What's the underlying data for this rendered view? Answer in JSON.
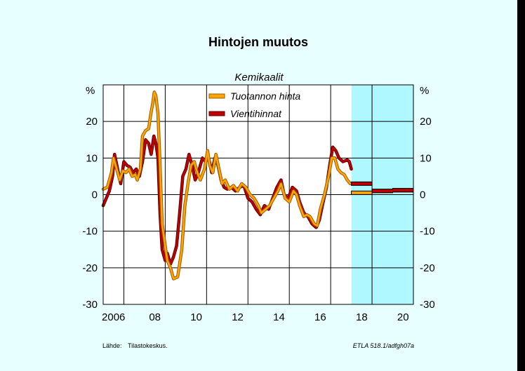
{
  "chart_data": {
    "type": "line",
    "title": "Hintojen muutos",
    "subtitle": "Kemikaalit",
    "ylabel_left": "%",
    "ylabel_right": "%",
    "ylim": [
      -30,
      30
    ],
    "yticks": [
      20,
      10,
      0,
      -10,
      -20,
      -30
    ],
    "xlim": [
      2005.5,
      2020.5
    ],
    "xticks": [
      {
        "value": 2006,
        "label": "2006"
      },
      {
        "value": 2008,
        "label": "08"
      },
      {
        "value": 2010,
        "label": "10"
      },
      {
        "value": 2012,
        "label": "12"
      },
      {
        "value": 2014,
        "label": "14"
      },
      {
        "value": 2016,
        "label": "16"
      },
      {
        "value": 2018,
        "label": "18"
      },
      {
        "value": 2020,
        "label": "20"
      }
    ],
    "x_gridlines": [
      2006.5,
      2008.5,
      2010.5,
      2012.5,
      2014.5,
      2016.5,
      2018.5
    ],
    "forecast_start": 2017.5,
    "legend_position": "top-center",
    "series": [
      {
        "name": "Tuotannon hinta",
        "color": "#ffa500",
        "values": [
          [
            2005.5,
            1.5
          ],
          [
            2005.7,
            2.0
          ],
          [
            2005.9,
            6.0
          ],
          [
            2006.0,
            10.0
          ],
          [
            2006.15,
            7.0
          ],
          [
            2006.3,
            4.0
          ],
          [
            2006.45,
            6.5
          ],
          [
            2006.6,
            6.0
          ],
          [
            2006.75,
            7.0
          ],
          [
            2006.9,
            5.0
          ],
          [
            2007.05,
            5.5
          ],
          [
            2007.15,
            4.0
          ],
          [
            2007.3,
            7.0
          ],
          [
            2007.4,
            16.0
          ],
          [
            2007.55,
            17.5
          ],
          [
            2007.7,
            18.0
          ],
          [
            2007.8,
            22.0
          ],
          [
            2007.9,
            25.0
          ],
          [
            2007.97,
            28.0
          ],
          [
            2008.05,
            27.0
          ],
          [
            2008.15,
            22.0
          ],
          [
            2008.25,
            8.0
          ],
          [
            2008.35,
            -8.0
          ],
          [
            2008.45,
            -12.0
          ],
          [
            2008.6,
            -18.0
          ],
          [
            2008.75,
            -20.0
          ],
          [
            2008.9,
            -23.0
          ],
          [
            2009.1,
            -22.5
          ],
          [
            2009.3,
            -15.0
          ],
          [
            2009.45,
            -3.0
          ],
          [
            2009.6,
            3.0
          ],
          [
            2009.75,
            8.0
          ],
          [
            2009.9,
            9.0
          ],
          [
            2010.05,
            6.0
          ],
          [
            2010.2,
            4.0
          ],
          [
            2010.4,
            7.0
          ],
          [
            2010.55,
            12.0
          ],
          [
            2010.65,
            8.0
          ],
          [
            2010.8,
            6.0
          ],
          [
            2010.95,
            11.0
          ],
          [
            2011.1,
            7.0
          ],
          [
            2011.25,
            3.0
          ],
          [
            2011.4,
            4.0
          ],
          [
            2011.6,
            1.5
          ],
          [
            2011.8,
            2.5
          ],
          [
            2012.0,
            1.0
          ],
          [
            2012.2,
            3.0
          ],
          [
            2012.4,
            2.0
          ],
          [
            2012.6,
            0.0
          ],
          [
            2012.8,
            -1.0
          ],
          [
            2013.0,
            -3.0
          ],
          [
            2013.15,
            -5.0
          ],
          [
            2013.35,
            -4.0
          ],
          [
            2013.55,
            -3.0
          ],
          [
            2013.75,
            -1.0
          ],
          [
            2013.95,
            1.0
          ],
          [
            2014.1,
            3.0
          ],
          [
            2014.3,
            -1.0
          ],
          [
            2014.5,
            -2.0
          ],
          [
            2014.7,
            1.0
          ],
          [
            2014.85,
            0.0
          ],
          [
            2015.0,
            -3.0
          ],
          [
            2015.2,
            -6.0
          ],
          [
            2015.35,
            -5.5
          ],
          [
            2015.5,
            -6.0
          ],
          [
            2015.7,
            -8.0
          ],
          [
            2015.85,
            -8.5
          ],
          [
            2016.0,
            -4.0
          ],
          [
            2016.2,
            0.0
          ],
          [
            2016.4,
            5.0
          ],
          [
            2016.55,
            10.0
          ],
          [
            2016.7,
            10.0
          ],
          [
            2016.85,
            7.0
          ],
          [
            2017.0,
            6.0
          ],
          [
            2017.15,
            5.5
          ],
          [
            2017.3,
            4.0
          ],
          [
            2017.45,
            3.0
          ]
        ]
      },
      {
        "name": "Vientihinnat",
        "color": "#c00000",
        "values": [
          [
            2005.5,
            -3.0
          ],
          [
            2005.65,
            -1.0
          ],
          [
            2005.8,
            1.0
          ],
          [
            2005.95,
            5.0
          ],
          [
            2006.05,
            11.0
          ],
          [
            2006.2,
            7.0
          ],
          [
            2006.35,
            3.0
          ],
          [
            2006.5,
            9.0
          ],
          [
            2006.65,
            8.0
          ],
          [
            2006.8,
            7.5
          ],
          [
            2006.95,
            6.0
          ],
          [
            2007.1,
            7.0
          ],
          [
            2007.25,
            5.0
          ],
          [
            2007.4,
            9.0
          ],
          [
            2007.55,
            15.0
          ],
          [
            2007.7,
            14.0
          ],
          [
            2007.82,
            11.0
          ],
          [
            2007.95,
            16.0
          ],
          [
            2008.05,
            14.0
          ],
          [
            2008.15,
            10.0
          ],
          [
            2008.25,
            -5.0
          ],
          [
            2008.35,
            -15.0
          ],
          [
            2008.5,
            -18.0
          ],
          [
            2008.6,
            -16.0
          ],
          [
            2008.75,
            -19.0
          ],
          [
            2008.9,
            -17.0
          ],
          [
            2009.05,
            -14.0
          ],
          [
            2009.2,
            -5.0
          ],
          [
            2009.35,
            5.0
          ],
          [
            2009.5,
            7.0
          ],
          [
            2009.65,
            11.0
          ],
          [
            2009.8,
            8.0
          ],
          [
            2009.95,
            4.0
          ],
          [
            2010.1,
            6.0
          ],
          [
            2010.3,
            10.0
          ],
          [
            2010.45,
            9.0
          ],
          [
            2010.6,
            10.0
          ],
          [
            2010.75,
            6.0
          ],
          [
            2010.9,
            10.0
          ],
          [
            2011.05,
            8.0
          ],
          [
            2011.2,
            4.0
          ],
          [
            2011.35,
            2.0
          ],
          [
            2011.5,
            1.5
          ],
          [
            2011.7,
            2.0
          ],
          [
            2011.9,
            1.0
          ],
          [
            2012.1,
            2.0
          ],
          [
            2012.3,
            2.5
          ],
          [
            2012.5,
            -1.0
          ],
          [
            2012.7,
            -2.0
          ],
          [
            2012.9,
            -4.0
          ],
          [
            2013.1,
            -5.5
          ],
          [
            2013.3,
            -3.0
          ],
          [
            2013.5,
            -4.0
          ],
          [
            2013.7,
            -1.0
          ],
          [
            2013.9,
            2.0
          ],
          [
            2014.1,
            4.0
          ],
          [
            2014.25,
            0.0
          ],
          [
            2014.45,
            -1.0
          ],
          [
            2014.65,
            2.0
          ],
          [
            2014.85,
            1.0
          ],
          [
            2015.0,
            -2.0
          ],
          [
            2015.2,
            -5.0
          ],
          [
            2015.4,
            -6.0
          ],
          [
            2015.6,
            -8.0
          ],
          [
            2015.8,
            -9.0
          ],
          [
            2015.95,
            -7.0
          ],
          [
            2016.1,
            -3.0
          ],
          [
            2016.3,
            2.0
          ],
          [
            2016.45,
            8.0
          ],
          [
            2016.6,
            13.0
          ],
          [
            2016.75,
            12.0
          ],
          [
            2016.9,
            10.0
          ],
          [
            2017.1,
            9.0
          ],
          [
            2017.3,
            9.5
          ],
          [
            2017.4,
            9.0
          ],
          [
            2017.5,
            7.0
          ]
        ]
      }
    ],
    "forecast_segments": [
      {
        "series": "Tuotannon hinta",
        "x": [
          2017.5,
          2018.5
        ],
        "y": 0.5
      },
      {
        "series": "Vientihinnat",
        "x": [
          2017.5,
          2018.5
        ],
        "y": 3.0
      },
      {
        "series": "Tuotannon hinta",
        "x": [
          2018.5,
          2019.5
        ],
        "y": 1.0
      },
      {
        "series": "Vientihinnat",
        "x": [
          2018.5,
          2019.5
        ],
        "y": 1.0
      },
      {
        "series": "Tuotannon hinta",
        "x": [
          2019.5,
          2020.5
        ],
        "y": 1.2
      },
      {
        "series": "Vientihinnat",
        "x": [
          2019.5,
          2020.5
        ],
        "y": 1.2
      }
    ]
  },
  "footer": {
    "source_label": "Lähde:",
    "source_text": "Tilastokeskus.",
    "credit": "ETLA 518.1/adfgh07a"
  },
  "colors": {
    "background": "#e8ffff",
    "plot_bg": "#ffffff",
    "forecast_bg": "#b0f8ff",
    "series_outline": "#a05a00"
  }
}
